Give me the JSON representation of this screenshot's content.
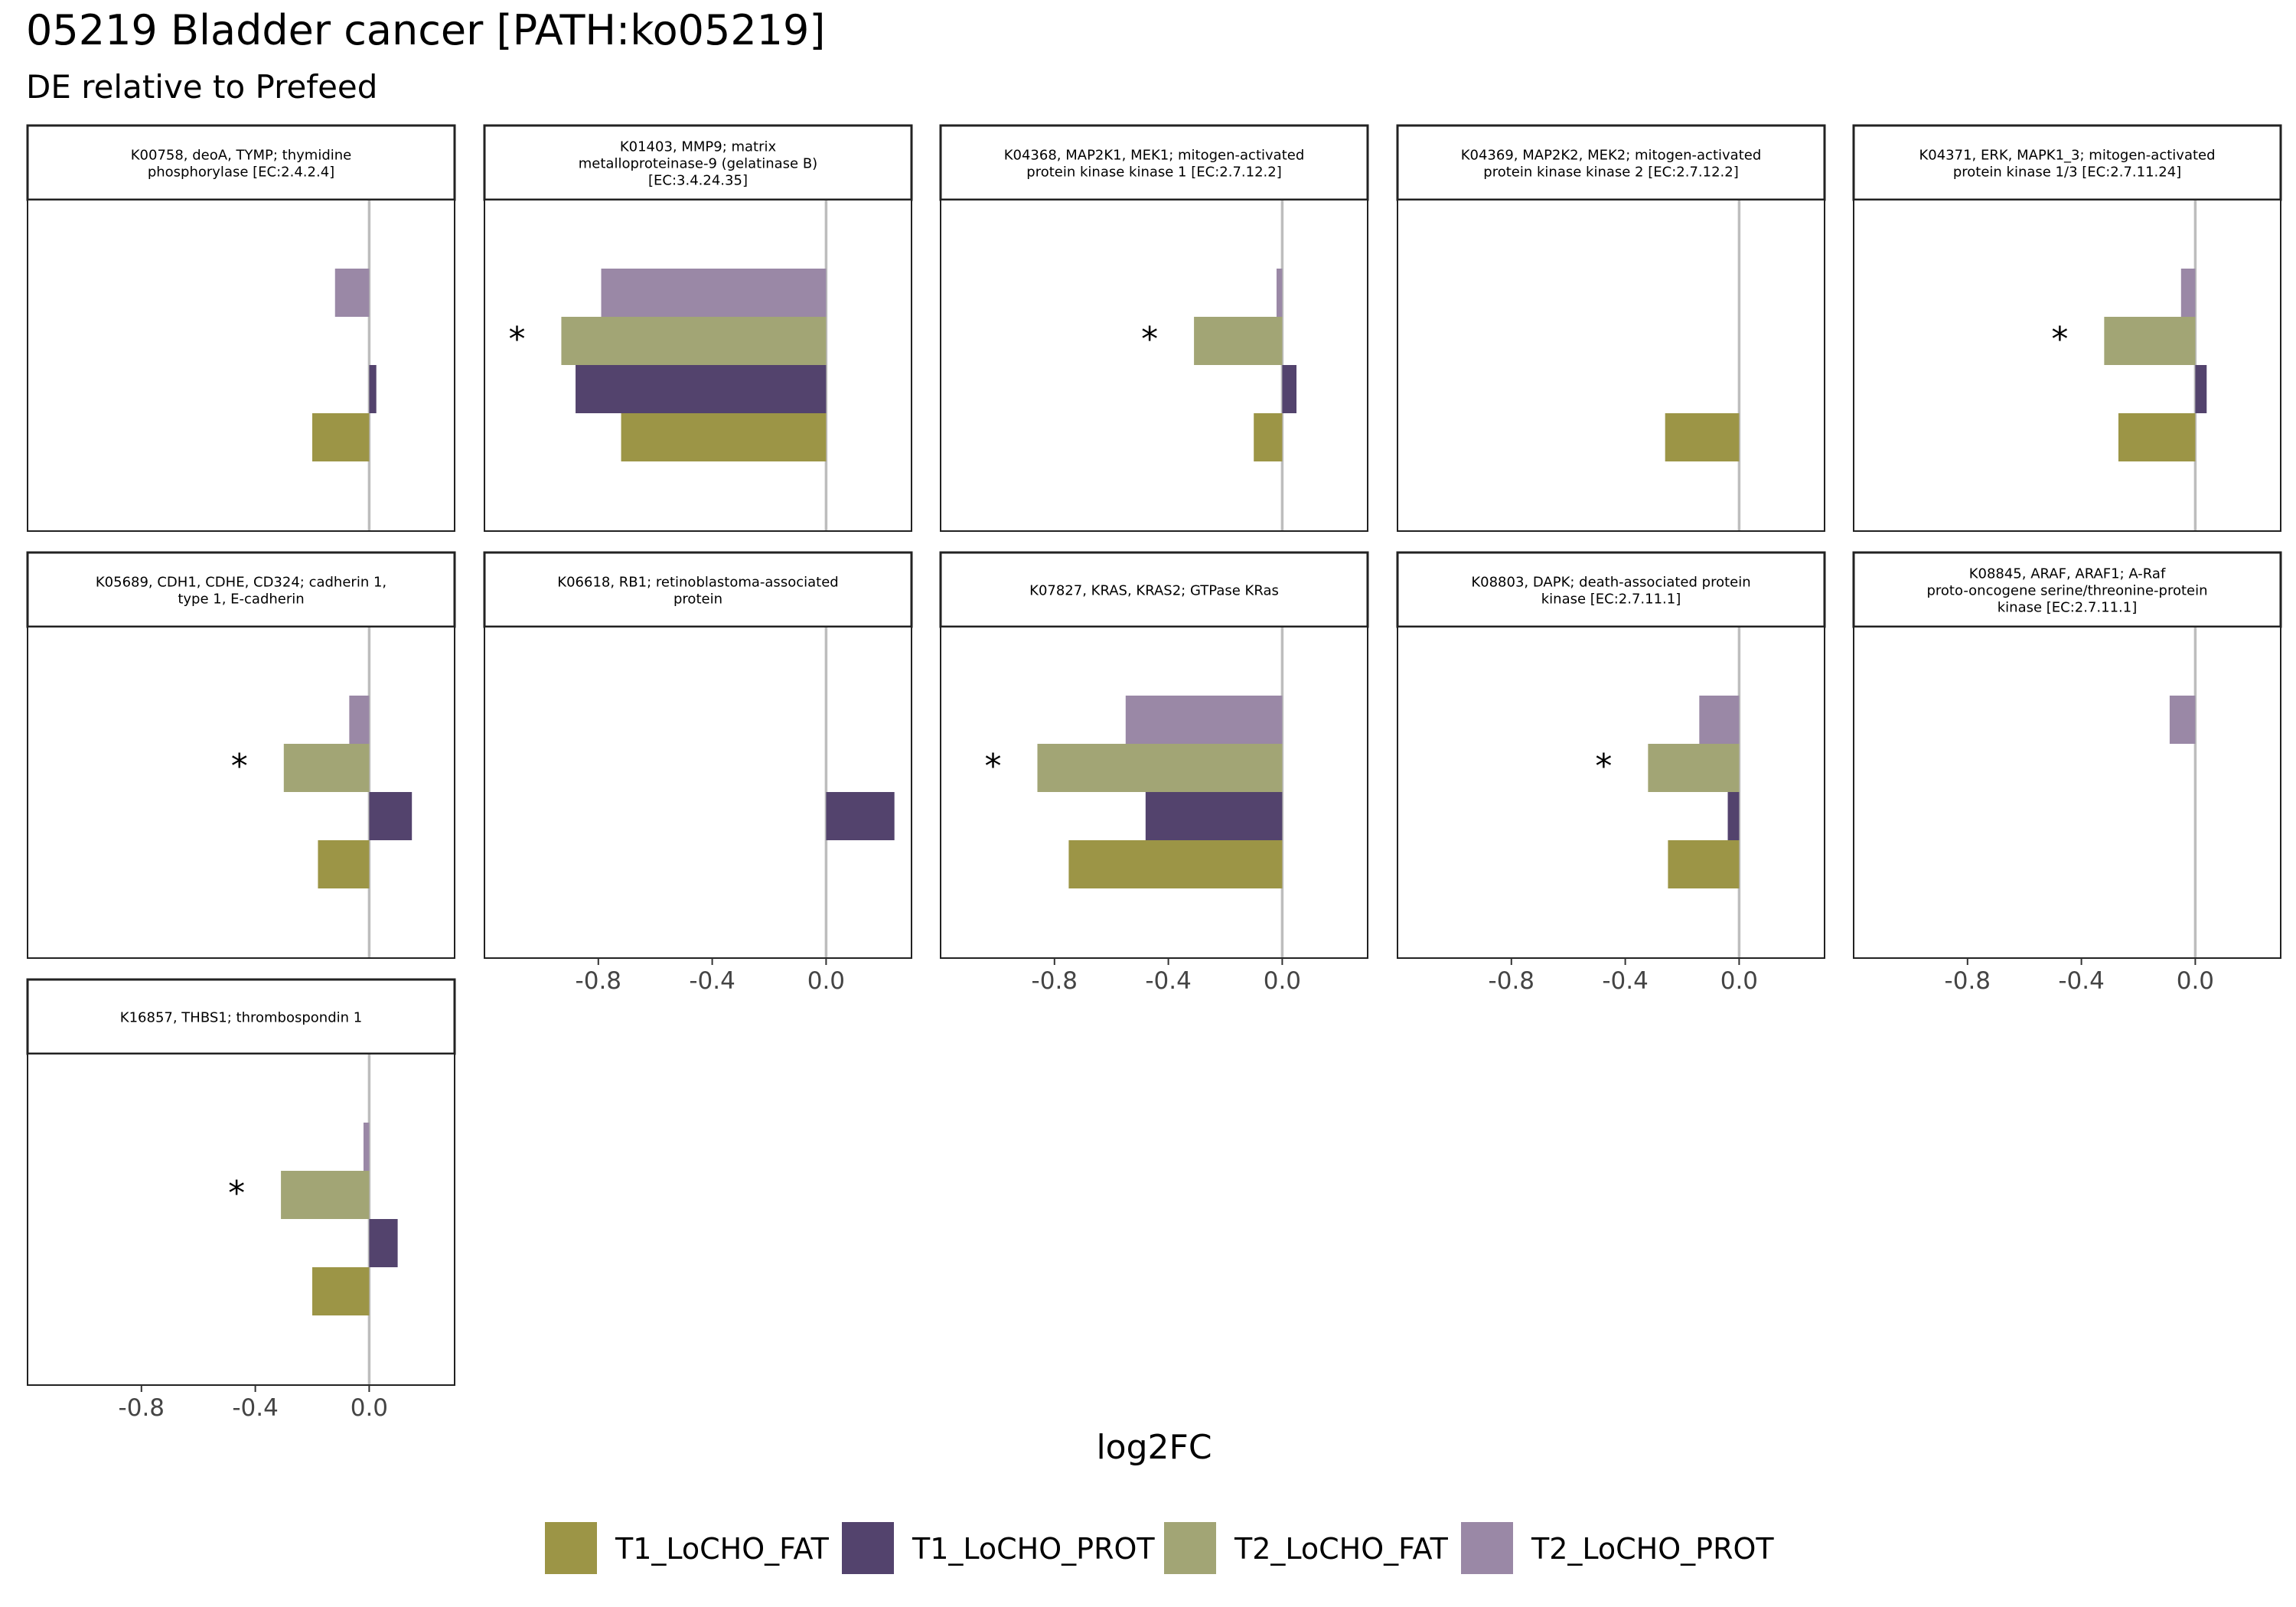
{
  "title": "05219 Bladder cancer [PATH:ko05219]",
  "subtitle": "DE relative to Prefeed",
  "xlabel": "log2FC",
  "significance_marker": "*",
  "colors": {
    "T1_LoCHO_FAT": "#9c9546",
    "T1_LoCHO_PROT": "#53436d",
    "T2_LoCHO_FAT": "#a2a575",
    "T2_LoCHO_PROT": "#9a88a6",
    "zero_line": "#bdbdbd",
    "panel_border": "#222222"
  },
  "chart_data": {
    "type": "bar",
    "orientation": "horizontal",
    "layout": "faceted grid, 5 columns, 3 rows",
    "xlim": [
      -1.2,
      0.3
    ],
    "x_ticks": [
      -0.8,
      -0.4,
      0.0
    ],
    "x_tick_labels": [
      "-0.8",
      "-0.4",
      "0.0"
    ],
    "grid": false,
    "legend_position": "bottom",
    "series_order": [
      "T1_LoCHO_FAT",
      "T1_LoCHO_PROT",
      "T2_LoCHO_FAT",
      "T2_LoCHO_PROT"
    ],
    "legend": [
      "T1_LoCHO_FAT",
      "T1_LoCHO_PROT",
      "T2_LoCHO_FAT",
      "T2_LoCHO_PROT"
    ],
    "facets": [
      {
        "label": [
          "K00758, deoA, TYMP; thymidine",
          "phosphorylase [EC:2.4.2.4]"
        ],
        "values": {
          "T1_LoCHO_FAT": -0.2,
          "T1_LoCHO_PROT": 0.025,
          "T2_LoCHO_FAT": null,
          "T2_LoCHO_PROT": -0.12
        },
        "significant": []
      },
      {
        "label": [
          "K01403, MMP9; matrix",
          "metalloproteinase-9 (gelatinase B)",
          "[EC:3.4.24.35]"
        ],
        "values": {
          "T1_LoCHO_FAT": -0.72,
          "T1_LoCHO_PROT": -0.88,
          "T2_LoCHO_FAT": -0.93,
          "T2_LoCHO_PROT": -0.79
        },
        "significant": [
          "T2_LoCHO_FAT"
        ]
      },
      {
        "label": [
          "K04368, MAP2K1, MEK1; mitogen-activated",
          "protein kinase kinase 1 [EC:2.7.12.2]"
        ],
        "values": {
          "T1_LoCHO_FAT": -0.1,
          "T1_LoCHO_PROT": 0.05,
          "T2_LoCHO_FAT": -0.31,
          "T2_LoCHO_PROT": -0.02
        },
        "significant": [
          "T2_LoCHO_FAT"
        ]
      },
      {
        "label": [
          "K04369, MAP2K2, MEK2; mitogen-activated",
          "protein kinase kinase 2 [EC:2.7.12.2]"
        ],
        "values": {
          "T1_LoCHO_FAT": -0.26,
          "T1_LoCHO_PROT": null,
          "T2_LoCHO_FAT": null,
          "T2_LoCHO_PROT": null
        },
        "significant": []
      },
      {
        "label": [
          "K04371, ERK, MAPK1_3; mitogen-activated",
          "protein kinase 1/3 [EC:2.7.11.24]"
        ],
        "values": {
          "T1_LoCHO_FAT": -0.27,
          "T1_LoCHO_PROT": 0.04,
          "T2_LoCHO_FAT": -0.32,
          "T2_LoCHO_PROT": -0.05
        },
        "significant": [
          "T2_LoCHO_FAT"
        ]
      },
      {
        "label": [
          "K05689, CDH1, CDHE, CD324; cadherin 1,",
          "type 1, E-cadherin"
        ],
        "values": {
          "T1_LoCHO_FAT": -0.18,
          "T1_LoCHO_PROT": 0.15,
          "T2_LoCHO_FAT": -0.3,
          "T2_LoCHO_PROT": -0.07
        },
        "significant": [
          "T2_LoCHO_FAT"
        ]
      },
      {
        "label": [
          "K06618, RB1; retinoblastoma-associated",
          "protein"
        ],
        "values": {
          "T1_LoCHO_FAT": null,
          "T1_LoCHO_PROT": 0.24,
          "T2_LoCHO_FAT": null,
          "T2_LoCHO_PROT": null
        },
        "significant": []
      },
      {
        "label": [
          "K07827, KRAS, KRAS2; GTPase KRas"
        ],
        "values": {
          "T1_LoCHO_FAT": -0.75,
          "T1_LoCHO_PROT": -0.48,
          "T2_LoCHO_FAT": -0.86,
          "T2_LoCHO_PROT": -0.55
        },
        "significant": [
          "T2_LoCHO_FAT"
        ]
      },
      {
        "label": [
          "K08803, DAPK; death-associated protein",
          "kinase [EC:2.7.11.1]"
        ],
        "values": {
          "T1_LoCHO_FAT": -0.25,
          "T1_LoCHO_PROT": -0.04,
          "T2_LoCHO_FAT": -0.32,
          "T2_LoCHO_PROT": -0.14
        },
        "significant": [
          "T2_LoCHO_FAT"
        ]
      },
      {
        "label": [
          "K08845, ARAF, ARAF1; A-Raf",
          "proto-oncogene serine/threonine-protein",
          "kinase [EC:2.7.11.1]"
        ],
        "values": {
          "T1_LoCHO_FAT": null,
          "T1_LoCHO_PROT": null,
          "T2_LoCHO_FAT": null,
          "T2_LoCHO_PROT": -0.09
        },
        "significant": []
      },
      {
        "label": [
          "K16857, THBS1; thrombospondin 1"
        ],
        "values": {
          "T1_LoCHO_FAT": -0.2,
          "T1_LoCHO_PROT": 0.1,
          "T2_LoCHO_FAT": -0.31,
          "T2_LoCHO_PROT": -0.02
        },
        "significant": [
          "T2_LoCHO_FAT"
        ]
      }
    ]
  }
}
